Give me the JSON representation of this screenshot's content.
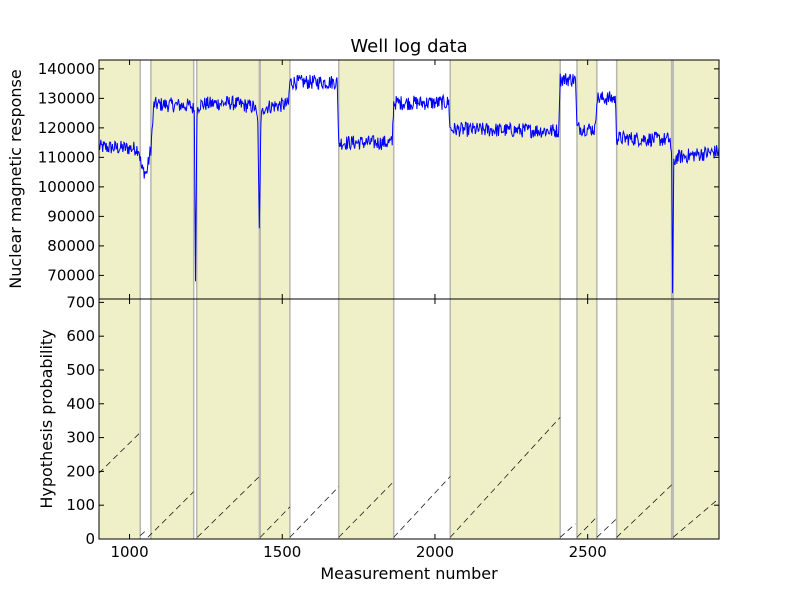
{
  "chart_data": [
    {
      "type": "line",
      "title": "Well log data",
      "xlabel": "",
      "ylabel": "Nuclear magnetic response",
      "xlim": [
        900,
        2930
      ],
      "ylim": [
        62000,
        143000
      ],
      "yticks": [
        70000,
        80000,
        90000,
        100000,
        110000,
        120000,
        130000,
        140000
      ],
      "ytick_labels": [
        "70000",
        "80000",
        "90000",
        "100000",
        "110000",
        "120000",
        "130000",
        "140000"
      ],
      "line_color": "#0000ff",
      "shade_color": "#f0f0c8",
      "series_points": [
        [
          900,
          113500
        ],
        [
          1030,
          113000
        ],
        [
          1040,
          106000
        ],
        [
          1055,
          104500
        ],
        [
          1070,
          113000
        ],
        [
          1080,
          128000
        ],
        [
          1200,
          127500
        ],
        [
          1212,
          126000
        ],
        [
          1216,
          68000
        ],
        [
          1221,
          126000
        ],
        [
          1230,
          128000
        ],
        [
          1330,
          128500
        ],
        [
          1410,
          127000
        ],
        [
          1420,
          122000
        ],
        [
          1425,
          86000
        ],
        [
          1430,
          123000
        ],
        [
          1440,
          127000
        ],
        [
          1520,
          128000
        ],
        [
          1525,
          135500
        ],
        [
          1680,
          135500
        ],
        [
          1685,
          115000
        ],
        [
          1860,
          115000
        ],
        [
          1865,
          128500
        ],
        [
          2045,
          128500
        ],
        [
          2050,
          119500
        ],
        [
          2405,
          119000
        ],
        [
          2410,
          136500
        ],
        [
          2460,
          136500
        ],
        [
          2465,
          120000
        ],
        [
          2525,
          119500
        ],
        [
          2530,
          130000
        ],
        [
          2590,
          130000
        ],
        [
          2595,
          116500
        ],
        [
          2770,
          116000
        ],
        [
          2775,
          108000
        ],
        [
          2778,
          64000
        ],
        [
          2782,
          108000
        ],
        [
          2790,
          110000
        ],
        [
          2930,
          112000
        ]
      ],
      "noise_amplitude": 2500,
      "shaded_regions": [
        [
          900,
          1035
        ],
        [
          1070,
          1210
        ],
        [
          1220,
          1425
        ],
        [
          1428,
          1525
        ],
        [
          1685,
          1865
        ],
        [
          2050,
          2410
        ],
        [
          2465,
          2530
        ],
        [
          2595,
          2775
        ],
        [
          2780,
          2930
        ]
      ],
      "boundaries": [
        1035,
        1070,
        1210,
        1220,
        1425,
        1428,
        1525,
        1685,
        1865,
        2050,
        2410,
        2465,
        2530,
        2595,
        2775,
        2780
      ]
    },
    {
      "type": "line",
      "title": "",
      "xlabel": "Measurement number",
      "ylabel": "Hypothesis probability",
      "xlim": [
        900,
        2930
      ],
      "ylim": [
        0,
        710
      ],
      "xticks": [
        1000,
        1500,
        2000,
        2500
      ],
      "xtick_labels": [
        "1000",
        "1500",
        "2000",
        "2500"
      ],
      "yticks": [
        0,
        100,
        200,
        300,
        400,
        500,
        600,
        700
      ],
      "ytick_labels": [
        "0",
        "100",
        "200",
        "300",
        "400",
        "500",
        "600",
        "700"
      ],
      "line_color": "#000000",
      "segments": [
        [
          [
            900,
            195
          ],
          [
            1035,
            315
          ]
        ],
        [
          [
            1035,
            10
          ],
          [
            1060,
            30
          ]
        ],
        [
          [
            1060,
            5
          ],
          [
            1210,
            140
          ]
        ],
        [
          [
            1222,
            5
          ],
          [
            1425,
            185
          ]
        ],
        [
          [
            1428,
            5
          ],
          [
            1525,
            95
          ]
        ],
        [
          [
            1525,
            5
          ],
          [
            1685,
            155
          ]
        ],
        [
          [
            1685,
            5
          ],
          [
            1865,
            170
          ]
        ],
        [
          [
            1865,
            5
          ],
          [
            2050,
            185
          ]
        ],
        [
          [
            2050,
            5
          ],
          [
            2410,
            360
          ]
        ],
        [
          [
            2410,
            5
          ],
          [
            2460,
            45
          ]
        ],
        [
          [
            2465,
            5
          ],
          [
            2530,
            65
          ]
        ],
        [
          [
            2530,
            5
          ],
          [
            2595,
            60
          ]
        ],
        [
          [
            2595,
            5
          ],
          [
            2775,
            160
          ]
        ],
        [
          [
            2780,
            5
          ],
          [
            2930,
            120
          ]
        ]
      ]
    }
  ]
}
